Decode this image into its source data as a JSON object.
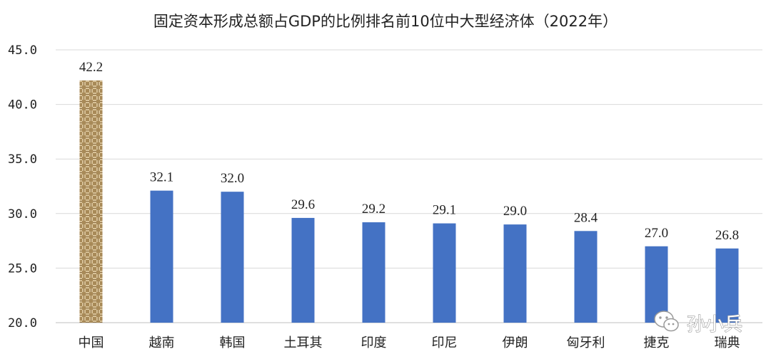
{
  "chart_data": {
    "type": "bar",
    "title": "固定资本形成总额占GDP的比例排名前10位中大型经济体（2022年）",
    "categories": [
      "中国",
      "越南",
      "韩国",
      "土耳其",
      "印度",
      "印尼",
      "伊朗",
      "匈牙利",
      "捷克",
      "瑞典"
    ],
    "values": [
      42.2,
      32.1,
      32.0,
      29.6,
      29.2,
      29.1,
      29.0,
      28.4,
      27.0,
      26.8
    ],
    "value_labels": [
      "42.2",
      "32.1",
      "32.0",
      "29.6",
      "29.2",
      "29.1",
      "29.0",
      "28.4",
      "27.0",
      "26.8"
    ],
    "xlabel": "",
    "ylabel": "",
    "ylim": [
      20,
      45
    ],
    "yticks": [
      20,
      25,
      30,
      35,
      40,
      45
    ],
    "ytick_labels": [
      "20.0",
      "25.0",
      "30.0",
      "35.0",
      "40.0",
      "45.0"
    ],
    "grid": true,
    "bar_color": "#4472c4",
    "highlight_category": "中国",
    "highlight_style": "woven-texture"
  },
  "watermark": {
    "text": "孙小兵",
    "icon": "wechat-icon"
  }
}
